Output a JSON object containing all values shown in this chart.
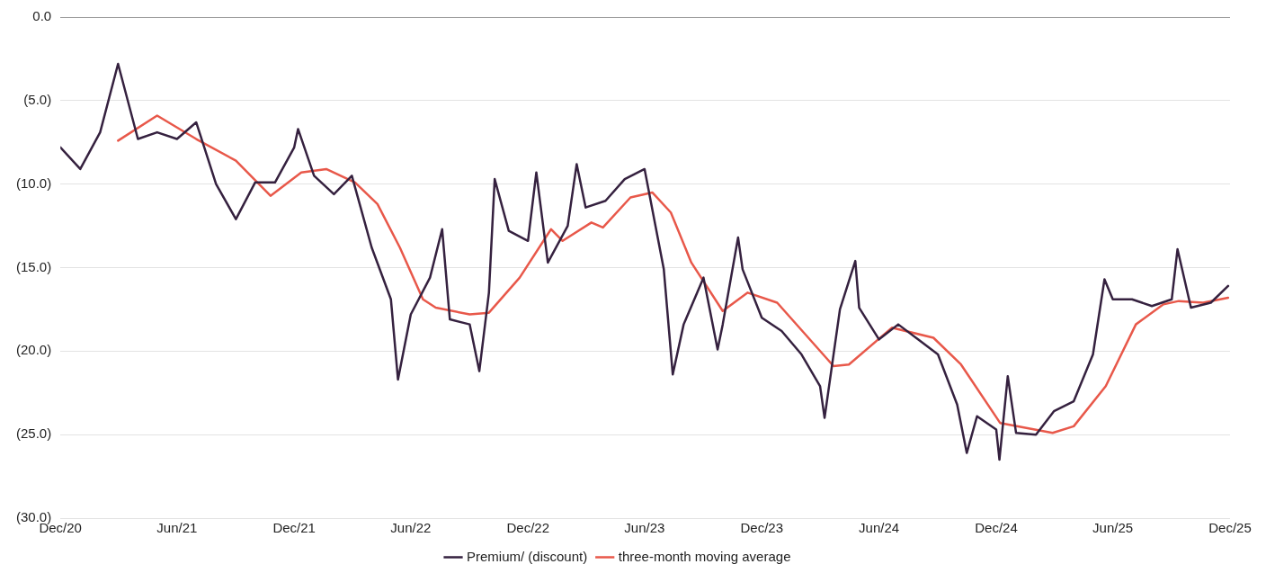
{
  "chart_data": {
    "type": "line",
    "xlim": [
      "2020-12",
      "2025-12"
    ],
    "xticks": [
      {
        "value": "2020-12",
        "label": "Dec/20"
      },
      {
        "value": "2021-06",
        "label": "Jun/21"
      },
      {
        "value": "2021-12",
        "label": "Dec/21"
      },
      {
        "value": "2022-06",
        "label": "Jun/22"
      },
      {
        "value": "2022-12",
        "label": "Dec/22"
      },
      {
        "value": "2023-06",
        "label": "Jun/23"
      },
      {
        "value": "2023-12",
        "label": "Dec/23"
      },
      {
        "value": "2024-06",
        "label": "Jun/24"
      },
      {
        "value": "2024-12",
        "label": "Dec/24"
      },
      {
        "value": "2025-06",
        "label": "Jun/25"
      },
      {
        "value": "2025-12",
        "label": "Dec/25"
      }
    ],
    "ylim": [
      -30,
      0
    ],
    "yticks": [
      {
        "value": 0,
        "label": "0.0"
      },
      {
        "value": -5,
        "label": "(5.0)"
      },
      {
        "value": -10,
        "label": "(10.0)"
      },
      {
        "value": -15,
        "label": "(15.0)"
      },
      {
        "value": -20,
        "label": "(20.0)"
      },
      {
        "value": -25,
        "label": "(25.0)"
      },
      {
        "value": -30,
        "label": "(30.0)"
      }
    ],
    "grid": "y",
    "legend": "bottom",
    "marker": "none",
    "line_style": "solid",
    "series": [
      {
        "name": "Premium/ (discount)",
        "color": "#35213f",
        "x": [
          "2020-12-01",
          "2021-01-01",
          "2021-02-01",
          "2021-03-01",
          "2021-04-01",
          "2021-05-01",
          "2021-06-01",
          "2021-07-01",
          "2021-08-01",
          "2021-09-01",
          "2021-10-01",
          "2021-11-01",
          "2021-12-01",
          "2021-12-07",
          "2022-01-01",
          "2022-02-01",
          "2022-03-01",
          "2022-04-01",
          "2022-05-01",
          "2022-05-12",
          "2022-06-01",
          "2022-07-01",
          "2022-07-20",
          "2022-08-01",
          "2022-09-01",
          "2022-09-16",
          "2022-10-01",
          "2022-10-10",
          "2022-11-01",
          "2022-12-01",
          "2022-12-14",
          "2023-01-01",
          "2023-02-01",
          "2023-02-15",
          "2023-03-01",
          "2023-04-01",
          "2023-05-01",
          "2023-06-01",
          "2023-07-01",
          "2023-07-15",
          "2023-08-01",
          "2023-09-01",
          "2023-09-23",
          "2023-10-01",
          "2023-10-25",
          "2023-11-01",
          "2023-12-01",
          "2024-01-01",
          "2024-02-01",
          "2024-03-01",
          "2024-03-08",
          "2024-04-01",
          "2024-04-25",
          "2024-05-01",
          "2024-06-01",
          "2024-07-01",
          "2024-08-01",
          "2024-09-01",
          "2024-10-01",
          "2024-10-16",
          "2024-11-01",
          "2024-12-01",
          "2024-12-06",
          "2024-12-19",
          "2025-01-01",
          "2025-02-01",
          "2025-03-01",
          "2025-04-01",
          "2025-05-01",
          "2025-05-19",
          "2025-06-01",
          "2025-07-01",
          "2025-08-01",
          "2025-09-01",
          "2025-09-10",
          "2025-10-01",
          "2025-11-01",
          "2025-11-28"
        ],
        "values": [
          -7.8,
          -9.1,
          -6.9,
          -2.8,
          -7.3,
          -6.9,
          -7.3,
          -6.3,
          -10.0,
          -12.1,
          -9.9,
          -9.9,
          -7.8,
          -6.7,
          -9.5,
          -10.6,
          -9.5,
          -13.8,
          -16.9,
          -21.7,
          -17.8,
          -15.6,
          -12.7,
          -18.1,
          -18.4,
          -21.2,
          -16.5,
          -9.7,
          -12.8,
          -13.4,
          -9.3,
          -14.7,
          -12.5,
          -8.8,
          -11.4,
          -11.0,
          -9.7,
          -9.1,
          -15.1,
          -21.4,
          -18.4,
          -15.6,
          -19.9,
          -18.4,
          -13.2,
          -15.1,
          -18.0,
          -18.8,
          -20.2,
          -22.1,
          -24.0,
          -17.5,
          -14.6,
          -17.4,
          -19.3,
          -18.4,
          -19.3,
          -20.2,
          -23.2,
          -26.1,
          -23.9,
          -24.7,
          -26.5,
          -21.5,
          -24.9,
          -25.0,
          -23.6,
          -23.0,
          -20.2,
          -15.7,
          -16.9,
          -16.9,
          -17.3,
          -16.9,
          -13.9,
          -17.4,
          -17.1,
          -16.1
        ]
      },
      {
        "name": "three-month moving average",
        "color": "#e8584a",
        "x": [
          "2021-03-01",
          "2021-05-01",
          "2021-07-01",
          "2021-09-01",
          "2021-10-25",
          "2021-12-12",
          "2022-01-20",
          "2022-03-06",
          "2022-04-10",
          "2022-05-15",
          "2022-06-20",
          "2022-07-10",
          "2022-09-01",
          "2022-10-01",
          "2022-11-18",
          "2023-01-06",
          "2023-01-24",
          "2023-03-10",
          "2023-03-28",
          "2023-05-10",
          "2023-06-13",
          "2023-07-12",
          "2023-08-13",
          "2023-10-01",
          "2023-11-09",
          "2023-12-25",
          "2024-03-22",
          "2024-04-15",
          "2024-06-21",
          "2024-08-25",
          "2024-10-07",
          "2024-12-07",
          "2025-02-27",
          "2025-04-01",
          "2025-05-21",
          "2025-07-07",
          "2025-08-19",
          "2025-09-12",
          "2025-10-20",
          "2025-11-28"
        ],
        "values": [
          -7.4,
          -5.9,
          -7.3,
          -8.6,
          -10.7,
          -9.3,
          -9.1,
          -9.9,
          -11.2,
          -13.8,
          -16.9,
          -17.4,
          -17.8,
          -17.7,
          -15.6,
          -12.7,
          -13.4,
          -12.3,
          -12.6,
          -10.8,
          -10.5,
          -11.7,
          -14.7,
          -17.6,
          -16.5,
          -17.1,
          -20.9,
          -20.8,
          -18.6,
          -19.2,
          -20.8,
          -24.3,
          -24.9,
          -24.5,
          -22.1,
          -18.4,
          -17.2,
          -17.0,
          -17.1,
          -16.8
        ]
      }
    ]
  }
}
